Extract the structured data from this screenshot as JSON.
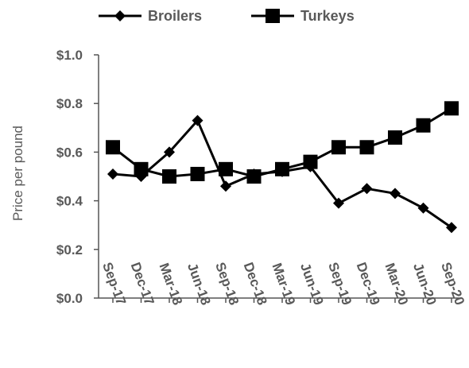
{
  "chart_data": {
    "type": "line",
    "title": "",
    "xlabel": "",
    "ylabel": "Price per pound",
    "categories": [
      "Sep-17",
      "Dec-17",
      "Mar-18",
      "Jun-18",
      "Sep-18",
      "Dec-18",
      "Mar-19",
      "Jun-19",
      "Sep-19",
      "Dec-19",
      "Mar-20",
      "Jun-20",
      "Sep-20"
    ],
    "ylim": [
      0,
      1.0
    ],
    "yticks": [
      0,
      0.2,
      0.4,
      0.6,
      0.8,
      1.0
    ],
    "ytick_labels": [
      "$0.0",
      "$0.2",
      "$0.4",
      "$0.6",
      "$0.8",
      "$1.0"
    ],
    "grid": false,
    "legend_position": "top",
    "series": [
      {
        "name": "Broilers",
        "marker": "diamond",
        "color": "#000000",
        "values": [
          0.51,
          0.5,
          0.6,
          0.73,
          0.46,
          0.51,
          0.52,
          0.54,
          0.39,
          0.45,
          0.43,
          0.37,
          0.29
        ]
      },
      {
        "name": "Turkeys",
        "marker": "square",
        "color": "#000000",
        "values": [
          0.62,
          0.53,
          0.5,
          0.51,
          0.53,
          0.5,
          0.53,
          0.56,
          0.62,
          0.62,
          0.66,
          0.71,
          0.78
        ]
      }
    ]
  }
}
